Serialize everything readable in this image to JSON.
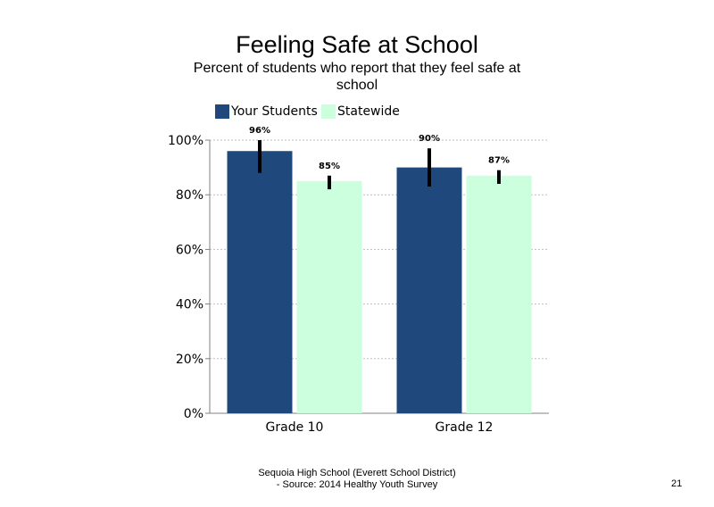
{
  "slide": {
    "title": "Feeling Safe at School",
    "subtitle": "Percent of students  who report that they feel safe at school",
    "footer_line1": "Sequoia High School (Everett School District)",
    "footer_line2": "- Source: 2014 Healthy Youth Survey",
    "page_number": "21"
  },
  "chart_data": {
    "type": "bar",
    "title": "Feeling Safe at School",
    "subtitle": "Percent of students  who report that they feel safe at school",
    "categories": [
      "Grade 10",
      "Grade 12"
    ],
    "series": [
      {
        "name": "Your Students",
        "values": [
          96,
          90
        ],
        "labels": [
          "96%",
          "90%"
        ],
        "error_low": [
          88,
          83
        ],
        "error_high": [
          100,
          97
        ],
        "color": "#1f497d"
      },
      {
        "name": "Statewide",
        "values": [
          85,
          87
        ],
        "labels": [
          "85%",
          "87%"
        ],
        "error_low": [
          82,
          84
        ],
        "error_high": [
          87,
          89
        ],
        "color": "#ccffdd"
      }
    ],
    "yticks": [
      "0%",
      "20%",
      "40%",
      "60%",
      "80%",
      "100%"
    ],
    "ylim": [
      0,
      100
    ],
    "gridlines": true,
    "legend_position": "top-left"
  }
}
